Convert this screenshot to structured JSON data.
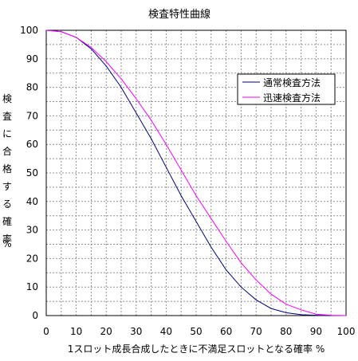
{
  "chart_data": {
    "type": "line",
    "title": "検査特性曲線",
    "xlabel": "1スロット成長合成したときに不満足スロットとなる確率 %",
    "ylabel_chars": [
      "検",
      "査",
      "に",
      "合",
      "格",
      "す",
      "る",
      "確",
      "率",
      "%"
    ],
    "xlim": [
      0,
      100
    ],
    "ylim": [
      0,
      100
    ],
    "xticks": [
      0,
      10,
      20,
      30,
      40,
      50,
      60,
      70,
      80,
      90,
      100
    ],
    "yticks": [
      0,
      10,
      20,
      30,
      40,
      50,
      60,
      70,
      80,
      90,
      100
    ],
    "grid": true,
    "legend_position": "top-right",
    "x": [
      0,
      5,
      10,
      15,
      20,
      25,
      30,
      35,
      40,
      45,
      50,
      55,
      60,
      65,
      70,
      75,
      80,
      85,
      90,
      95,
      100
    ],
    "series": [
      {
        "name": "通常検査方法",
        "color": "#000080",
        "values": [
          100,
          99.5,
          97.5,
          93.5,
          87.5,
          80,
          71,
          62,
          52,
          42,
          33,
          24,
          16,
          10,
          5.5,
          2.5,
          1,
          0.3,
          0.1,
          0,
          0
        ]
      },
      {
        "name": "迅速検査方法",
        "color": "#ff00ff",
        "values": [
          100,
          99.5,
          97.5,
          94,
          89,
          83,
          76,
          68.5,
          60,
          51,
          42,
          34,
          26,
          18.5,
          12.5,
          7.5,
          4,
          2,
          0.5,
          0.1,
          0
        ]
      }
    ]
  }
}
